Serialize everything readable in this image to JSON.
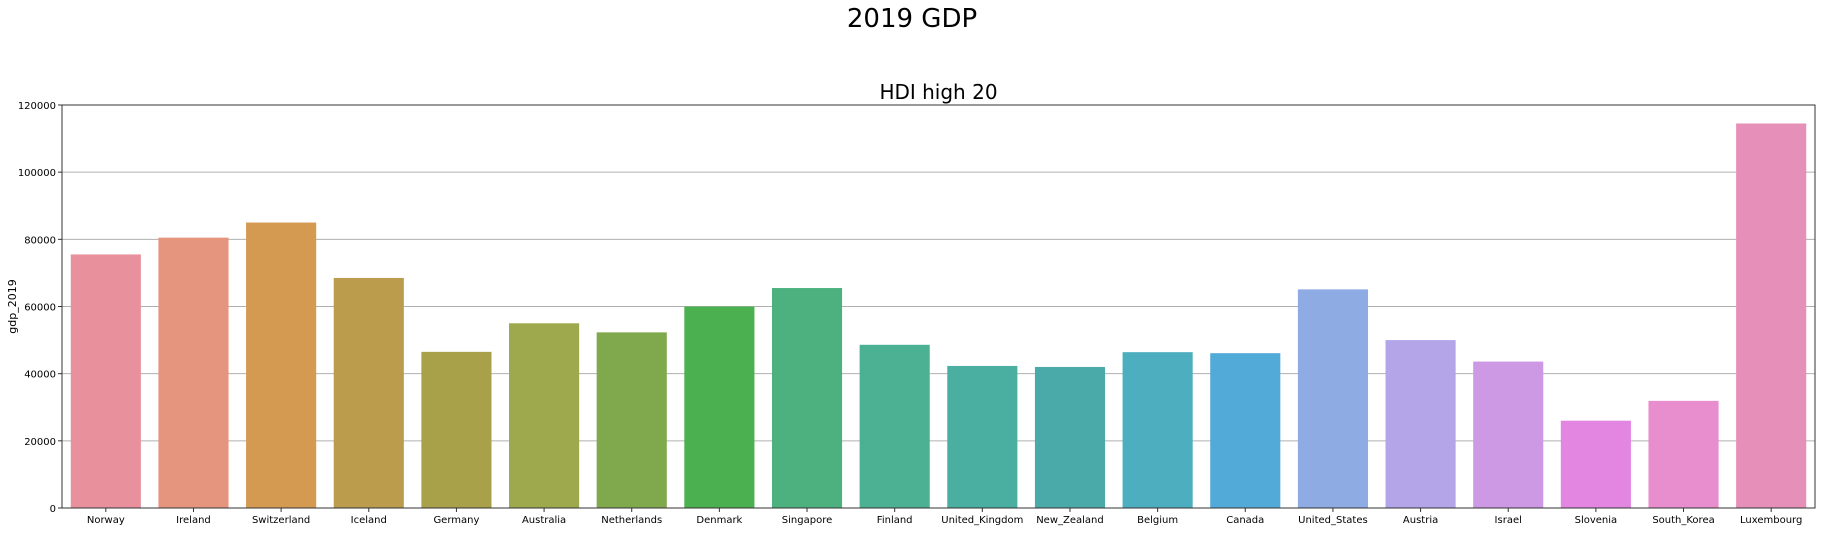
{
  "suptitle": "2019 GDP",
  "chart_data": {
    "type": "bar",
    "title": "HDI high 20",
    "xlabel": "",
    "ylabel": "gdp_2019",
    "categories": [
      "Norway",
      "Ireland",
      "Switzerland",
      "Iceland",
      "Germany",
      "Australia",
      "Netherlands",
      "Denmark",
      "Singapore",
      "Finland",
      "United_Kingdom",
      "New_Zealand",
      "Belgium",
      "Canada",
      "United_States",
      "Austria",
      "Israel",
      "Slovenia",
      "South_Korea",
      "Luxembourg"
    ],
    "values": [
      75500,
      80500,
      85000,
      68500,
      46500,
      55000,
      52300,
      60000,
      65500,
      48600,
      42300,
      42000,
      46400,
      46100,
      65100,
      50000,
      43600,
      26000,
      31900,
      114500
    ],
    "colors": [
      "#e8909c",
      "#e5947e",
      "#d49a52",
      "#bb9b4c",
      "#a9a04a",
      "#9ea84c",
      "#80a84c",
      "#4bb050",
      "#4db17f",
      "#4bb192",
      "#4aaea1",
      "#4aaaa9",
      "#4caebf",
      "#52aad8",
      "#8fabe4",
      "#b3a5e8",
      "#cd99e4",
      "#e286e2",
      "#e88dcd",
      "#e68fb8"
    ],
    "ylim": [
      0,
      120000
    ],
    "yticks": [
      0,
      20000,
      40000,
      60000,
      80000,
      100000,
      120000
    ],
    "grid": true
  }
}
